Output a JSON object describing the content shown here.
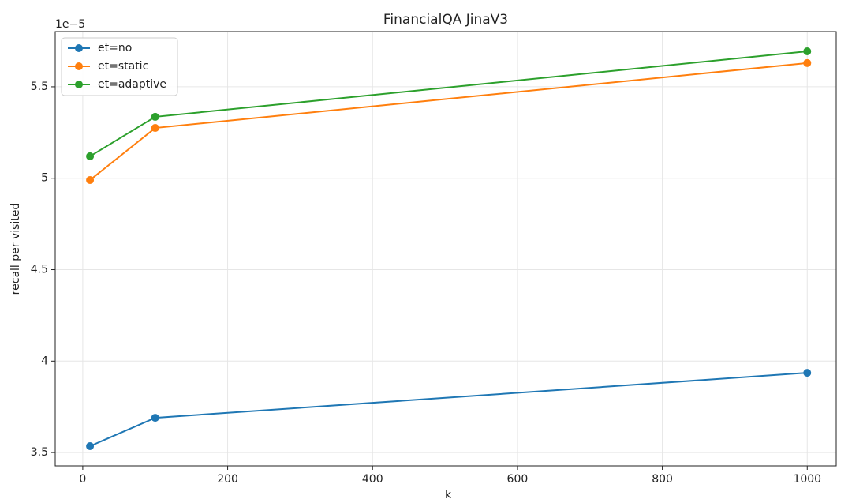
{
  "chart_data": {
    "type": "line",
    "title": "FinancialQA JinaV3",
    "x_label": "k",
    "y_label": "recall per visited",
    "y_offset_label": "1e−5",
    "x": [
      10,
      100,
      1000
    ],
    "series": [
      {
        "name": "et=no",
        "color": "#1f77b4",
        "values": [
          3.535,
          3.69,
          3.936
        ]
      },
      {
        "name": "et=static",
        "color": "#ff7f0e",
        "values": [
          4.99,
          5.275,
          5.63
        ]
      },
      {
        "name": "et=adaptive",
        "color": "#2ca02c",
        "values": [
          5.12,
          5.336,
          5.694
        ]
      }
    ],
    "xlim": [
      -38,
      1040
    ],
    "xticks": [
      0,
      200,
      400,
      600,
      800,
      1000
    ],
    "ylim": [
      3.427,
      5.802
    ],
    "yticks": [
      3.5,
      4.0,
      4.5,
      5.0,
      5.5
    ],
    "grid": true,
    "legend": "upper left"
  }
}
